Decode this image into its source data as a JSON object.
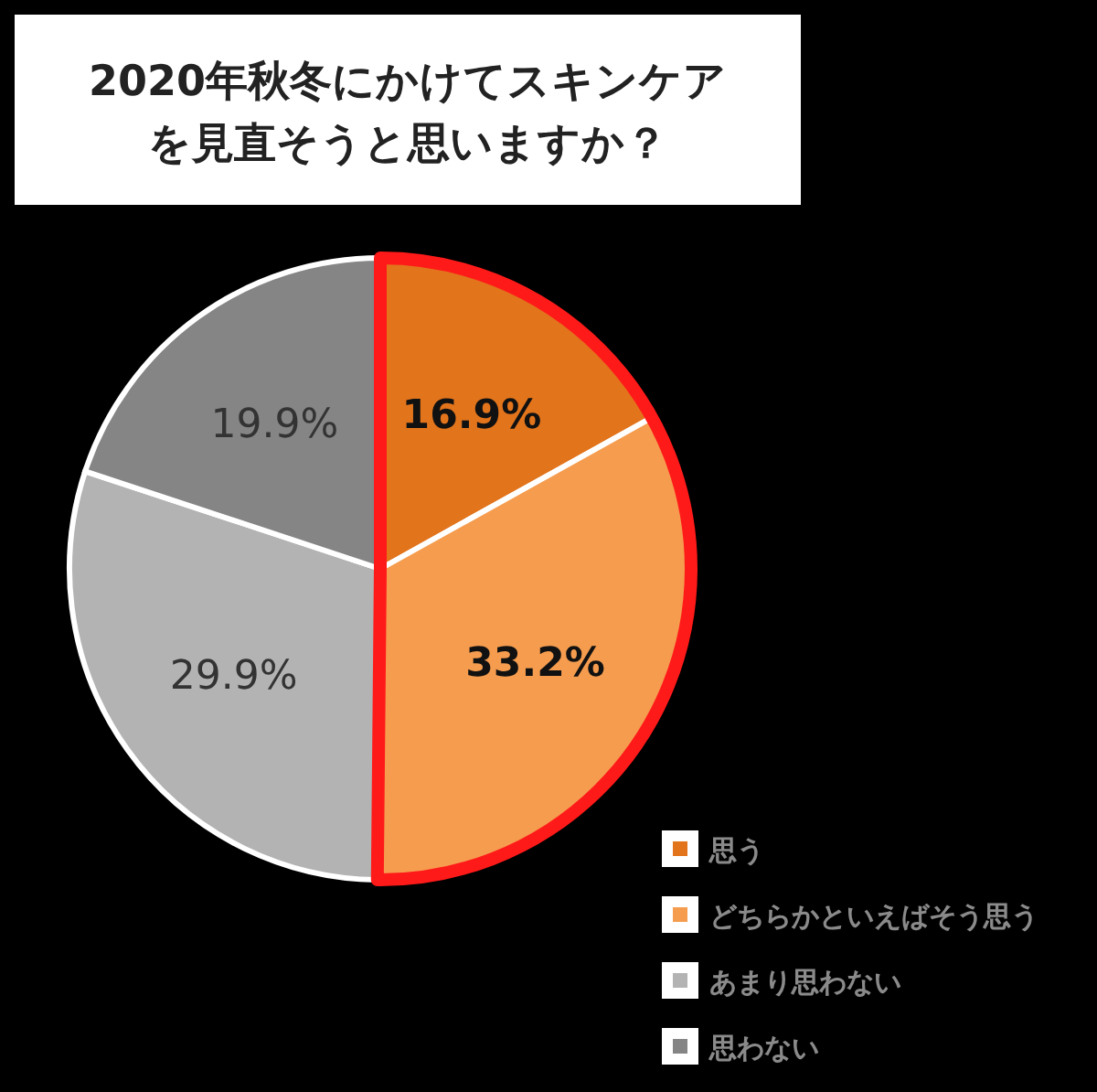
{
  "chart_data": {
    "type": "pie",
    "title": "2020年秋冬にかけてスキンケアを見直そうと思いますか？",
    "categories": [
      "思う",
      "どちらかといえばそう思う",
      "あまり思わない",
      "思わない"
    ],
    "values": [
      16.9,
      33.2,
      29.9,
      19.9
    ],
    "colors": [
      "#e2741c",
      "#f59c4e",
      "#b3b3b3",
      "#858585"
    ],
    "value_labels": [
      "16.9%",
      "33.2%",
      "29.9%",
      "19.9%"
    ],
    "legend": "bottom right"
  }
}
